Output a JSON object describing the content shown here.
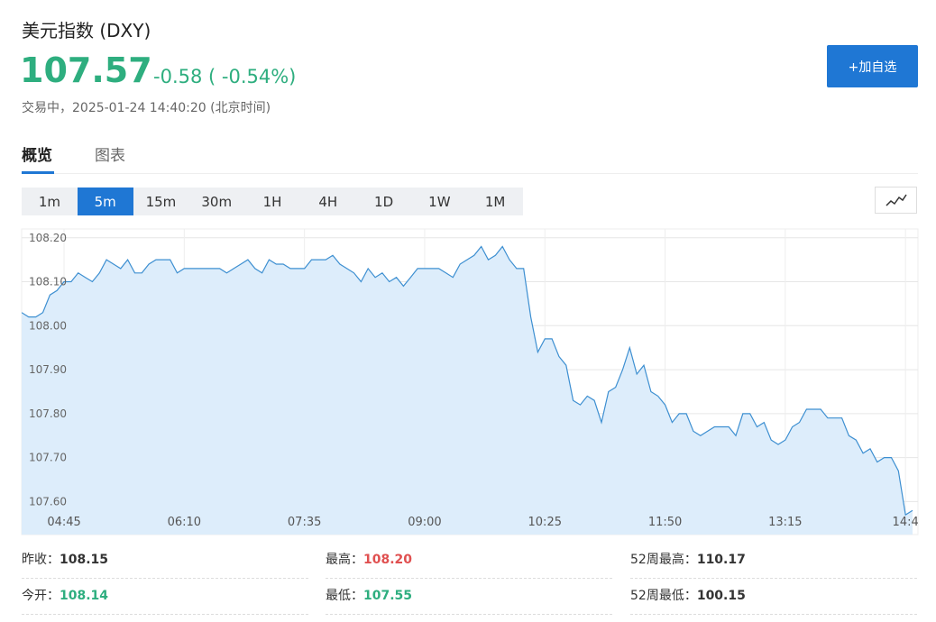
{
  "header": {
    "title": "美元指数 (DXY)",
    "price": "107.57",
    "change": "-0.58 ( -0.54%)",
    "status": "交易中，2025-01-24 14:40:20 (北京时间)"
  },
  "button": "+加自选",
  "tabs": [
    "概览",
    "图表"
  ],
  "intervals": [
    "1m",
    "5m",
    "15m",
    "30m",
    "1H",
    "4H",
    "1D",
    "1W",
    "1M"
  ],
  "chart_data": {
    "type": "line",
    "categories": [
      null,
      null,
      null,
      null,
      null,
      null,
      "04:45",
      null,
      null,
      null,
      null,
      null,
      null,
      null,
      null,
      null,
      null,
      null,
      null,
      null,
      null,
      null,
      null,
      "06:10",
      null,
      null,
      null,
      null,
      null,
      null,
      null,
      null,
      null,
      null,
      null,
      null,
      null,
      null,
      null,
      null,
      "07:35",
      null,
      null,
      null,
      null,
      null,
      null,
      null,
      null,
      null,
      null,
      null,
      null,
      null,
      null,
      null,
      null,
      "09:00",
      null,
      null,
      null,
      null,
      null,
      null,
      null,
      null,
      null,
      null,
      null,
      null,
      null,
      null,
      null,
      null,
      "10:25",
      null,
      null,
      null,
      null,
      null,
      null,
      null,
      null,
      null,
      null,
      null,
      null,
      null,
      null,
      null,
      null,
      "11:50",
      null,
      null,
      null,
      null,
      null,
      null,
      null,
      null,
      null,
      null,
      null,
      null,
      null,
      null,
      null,
      null,
      "13:15",
      null,
      null,
      null,
      null,
      null,
      null,
      null,
      null,
      null,
      null,
      null,
      null,
      null,
      null,
      null,
      null,
      "14:4",
      null
    ],
    "values": [
      108.03,
      108.02,
      108.02,
      108.03,
      108.07,
      108.08,
      108.1,
      108.1,
      108.12,
      108.11,
      108.1,
      108.12,
      108.15,
      108.14,
      108.13,
      108.15,
      108.12,
      108.12,
      108.14,
      108.15,
      108.15,
      108.15,
      108.12,
      108.13,
      108.13,
      108.13,
      108.13,
      108.13,
      108.13,
      108.12,
      108.13,
      108.14,
      108.15,
      108.13,
      108.12,
      108.15,
      108.14,
      108.14,
      108.13,
      108.13,
      108.13,
      108.15,
      108.15,
      108.15,
      108.16,
      108.14,
      108.13,
      108.12,
      108.1,
      108.13,
      108.11,
      108.12,
      108.1,
      108.11,
      108.09,
      108.11,
      108.13,
      108.13,
      108.13,
      108.13,
      108.12,
      108.11,
      108.14,
      108.15,
      108.16,
      108.18,
      108.15,
      108.16,
      108.18,
      108.15,
      108.13,
      108.13,
      108.02,
      107.94,
      107.97,
      107.97,
      107.93,
      107.91,
      107.83,
      107.82,
      107.84,
      107.83,
      107.78,
      107.85,
      107.86,
      107.9,
      107.95,
      107.89,
      107.91,
      107.85,
      107.84,
      107.82,
      107.78,
      107.8,
      107.8,
      107.76,
      107.75,
      107.76,
      107.77,
      107.77,
      107.77,
      107.75,
      107.8,
      107.8,
      107.77,
      107.78,
      107.74,
      107.73,
      107.74,
      107.77,
      107.78,
      107.81,
      107.81,
      107.81,
      107.79,
      107.79,
      107.79,
      107.75,
      107.74,
      107.71,
      107.72,
      107.69,
      107.7,
      107.7,
      107.67,
      107.57,
      107.58
    ],
    "color": "#3d8fd1",
    "fill": "#ddedfb",
    "ylim": [
      107.525,
      108.22
    ],
    "yticks": [
      {
        "value": 107.6,
        "label": "107.60"
      },
      {
        "value": 107.7,
        "label": "107.70"
      },
      {
        "value": 107.8,
        "label": "107.80"
      },
      {
        "value": 107.9,
        "label": "107.90"
      },
      {
        "value": 108.0,
        "label": "108.00"
      },
      {
        "value": 108.1,
        "label": "108.10"
      },
      {
        "value": 108.2,
        "label": "108.20"
      }
    ],
    "grid": true
  },
  "stats": [
    {
      "label": "昨收：",
      "value": "108.15"
    },
    {
      "label": "最高：",
      "value": "108.20"
    },
    {
      "label": "52周最高：",
      "value": "110.17"
    },
    {
      "label": "今开：",
      "value": "108.14"
    },
    {
      "label": "最低：",
      "value": "107.55"
    },
    {
      "label": "52周最低：",
      "value": "100.15"
    }
  ]
}
